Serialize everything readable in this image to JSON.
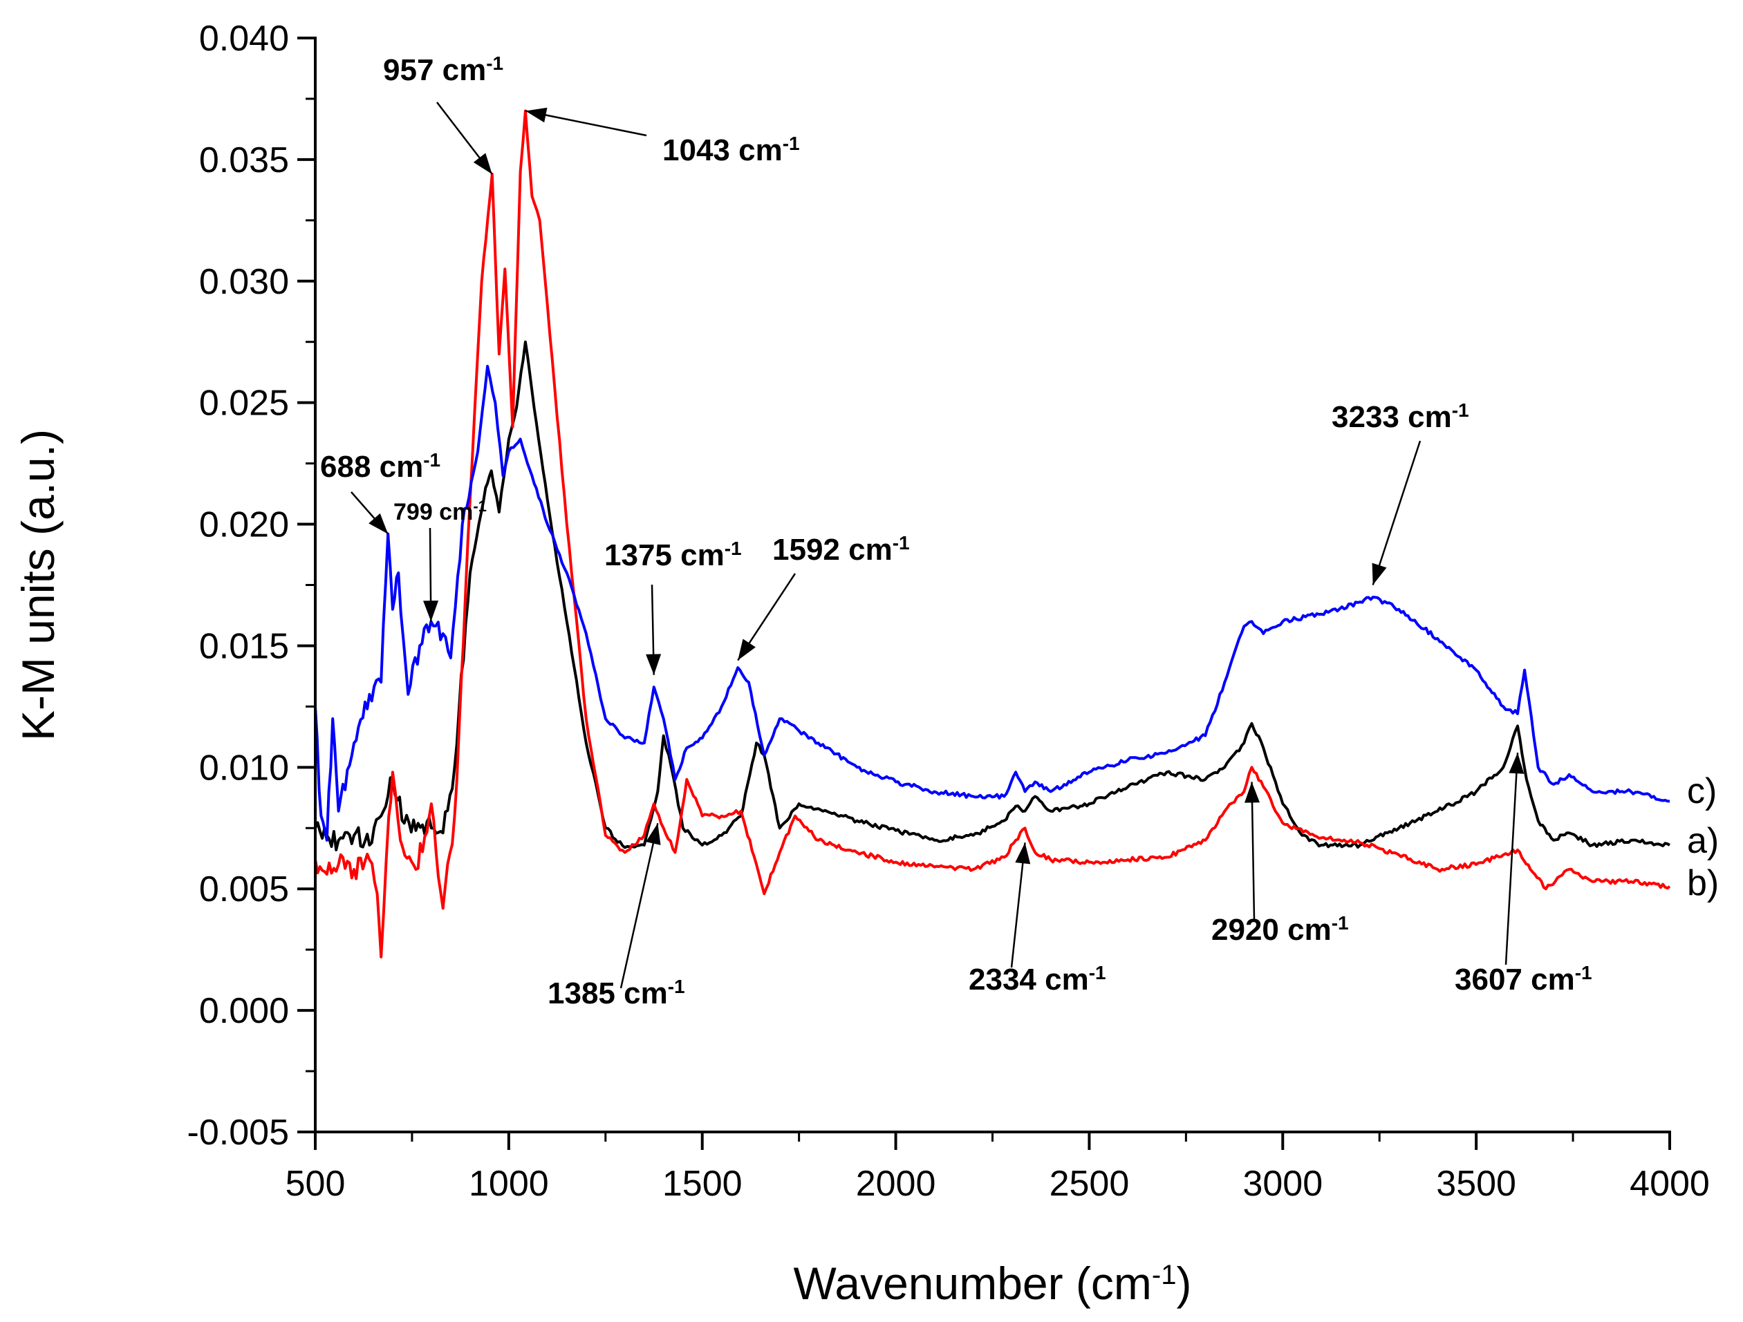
{
  "chart_data": {
    "type": "line",
    "title": "",
    "xlabel": "Wavenumber (cm",
    "xlabel_sup": "-1",
    "xlabel_tail": ")",
    "ylabel": "K-M units (a.u.)",
    "xlim": [
      500,
      4000
    ],
    "ylim": [
      -0.005,
      0.04
    ],
    "x_ticks": [
      500,
      1000,
      1500,
      2000,
      2500,
      3000,
      3500,
      4000
    ],
    "y_ticks": [
      -0.005,
      0.0,
      0.005,
      0.01,
      0.015,
      0.02,
      0.025,
      0.03,
      0.035,
      0.04
    ],
    "y_tick_labels": [
      "-0.005",
      "0.000",
      "0.005",
      "0.010",
      "0.015",
      "0.020",
      "0.025",
      "0.030",
      "0.035",
      "0.040"
    ],
    "x_tick_labels": [
      "500",
      "1000",
      "1500",
      "2000",
      "2500",
      "3000",
      "3500",
      "4000"
    ],
    "grid": false,
    "series": [
      {
        "name": "a)",
        "color": "#000000",
        "points": [
          [
            500,
            0.0075
          ],
          [
            530,
            0.0072
          ],
          [
            560,
            0.007
          ],
          [
            600,
            0.0072
          ],
          [
            640,
            0.0068
          ],
          [
            670,
            0.008
          ],
          [
            700,
            0.0096
          ],
          [
            730,
            0.0077
          ],
          [
            760,
            0.0074
          ],
          [
            800,
            0.0075
          ],
          [
            830,
            0.0073
          ],
          [
            860,
            0.01
          ],
          [
            900,
            0.018
          ],
          [
            940,
            0.0215
          ],
          [
            955,
            0.0222
          ],
          [
            975,
            0.0205
          ],
          [
            1000,
            0.0235
          ],
          [
            1020,
            0.0248
          ],
          [
            1043,
            0.0275
          ],
          [
            1060,
            0.0255
          ],
          [
            1100,
            0.021
          ],
          [
            1150,
            0.016
          ],
          [
            1200,
            0.011
          ],
          [
            1250,
            0.0075
          ],
          [
            1300,
            0.0067
          ],
          [
            1350,
            0.0068
          ],
          [
            1385,
            0.009
          ],
          [
            1400,
            0.0113
          ],
          [
            1420,
            0.01
          ],
          [
            1450,
            0.0075
          ],
          [
            1500,
            0.0068
          ],
          [
            1550,
            0.0072
          ],
          [
            1600,
            0.008
          ],
          [
            1640,
            0.011
          ],
          [
            1660,
            0.0105
          ],
          [
            1700,
            0.0075
          ],
          [
            1750,
            0.0085
          ],
          [
            1800,
            0.0083
          ],
          [
            1900,
            0.0078
          ],
          [
            2000,
            0.0074
          ],
          [
            2100,
            0.007
          ],
          [
            2200,
            0.0072
          ],
          [
            2280,
            0.0078
          ],
          [
            2310,
            0.0084
          ],
          [
            2334,
            0.0082
          ],
          [
            2360,
            0.0088
          ],
          [
            2400,
            0.0082
          ],
          [
            2500,
            0.0085
          ],
          [
            2600,
            0.0092
          ],
          [
            2700,
            0.0098
          ],
          [
            2800,
            0.0095
          ],
          [
            2850,
            0.01
          ],
          [
            2900,
            0.011
          ],
          [
            2920,
            0.0118
          ],
          [
            2950,
            0.0108
          ],
          [
            3000,
            0.0085
          ],
          [
            3050,
            0.0072
          ],
          [
            3100,
            0.0068
          ],
          [
            3200,
            0.0068
          ],
          [
            3300,
            0.0075
          ],
          [
            3400,
            0.0082
          ],
          [
            3500,
            0.009
          ],
          [
            3570,
            0.01
          ],
          [
            3607,
            0.0117
          ],
          [
            3630,
            0.0095
          ],
          [
            3660,
            0.0078
          ],
          [
            3700,
            0.007
          ],
          [
            3740,
            0.0073
          ],
          [
            3800,
            0.0068
          ],
          [
            3900,
            0.007
          ],
          [
            4000,
            0.0068
          ]
        ]
      },
      {
        "name": "b)",
        "color": "#ff0000",
        "points": [
          [
            500,
            0.0062
          ],
          [
            530,
            0.0056
          ],
          [
            560,
            0.006
          ],
          [
            600,
            0.0058
          ],
          [
            640,
            0.0062
          ],
          [
            660,
            0.0048
          ],
          [
            670,
            0.0022
          ],
          [
            690,
            0.008
          ],
          [
            700,
            0.0098
          ],
          [
            720,
            0.007
          ],
          [
            760,
            0.0058
          ],
          [
            800,
            0.0085
          ],
          [
            830,
            0.0042
          ],
          [
            860,
            0.008
          ],
          [
            900,
            0.021
          ],
          [
            930,
            0.03
          ],
          [
            957,
            0.0344
          ],
          [
            975,
            0.027
          ],
          [
            990,
            0.0305
          ],
          [
            1010,
            0.024
          ],
          [
            1030,
            0.0345
          ],
          [
            1043,
            0.037
          ],
          [
            1060,
            0.0335
          ],
          [
            1080,
            0.0325
          ],
          [
            1100,
            0.029
          ],
          [
            1150,
            0.02
          ],
          [
            1200,
            0.012
          ],
          [
            1250,
            0.0072
          ],
          [
            1300,
            0.0065
          ],
          [
            1350,
            0.0072
          ],
          [
            1375,
            0.0085
          ],
          [
            1400,
            0.0075
          ],
          [
            1430,
            0.0065
          ],
          [
            1460,
            0.0095
          ],
          [
            1500,
            0.008
          ],
          [
            1550,
            0.008
          ],
          [
            1600,
            0.0082
          ],
          [
            1640,
            0.006
          ],
          [
            1660,
            0.0048
          ],
          [
            1700,
            0.0065
          ],
          [
            1740,
            0.008
          ],
          [
            1800,
            0.007
          ],
          [
            1900,
            0.0065
          ],
          [
            2000,
            0.0061
          ],
          [
            2100,
            0.0059
          ],
          [
            2200,
            0.0058
          ],
          [
            2280,
            0.0063
          ],
          [
            2310,
            0.007
          ],
          [
            2334,
            0.0075
          ],
          [
            2360,
            0.0065
          ],
          [
            2400,
            0.0062
          ],
          [
            2500,
            0.0061
          ],
          [
            2600,
            0.0062
          ],
          [
            2700,
            0.0063
          ],
          [
            2800,
            0.007
          ],
          [
            2850,
            0.0082
          ],
          [
            2900,
            0.009
          ],
          [
            2920,
            0.01
          ],
          [
            2950,
            0.0092
          ],
          [
            3000,
            0.0077
          ],
          [
            3100,
            0.0071
          ],
          [
            3200,
            0.0069
          ],
          [
            3300,
            0.0064
          ],
          [
            3400,
            0.0058
          ],
          [
            3500,
            0.006
          ],
          [
            3570,
            0.0064
          ],
          [
            3607,
            0.0066
          ],
          [
            3640,
            0.0058
          ],
          [
            3680,
            0.005
          ],
          [
            3740,
            0.0058
          ],
          [
            3800,
            0.0053
          ],
          [
            3900,
            0.0053
          ],
          [
            4000,
            0.0051
          ]
        ]
      },
      {
        "name": "c)",
        "color": "#0000ff",
        "points": [
          [
            500,
            0.0125
          ],
          [
            515,
            0.008
          ],
          [
            530,
            0.007
          ],
          [
            545,
            0.012
          ],
          [
            560,
            0.0082
          ],
          [
            600,
            0.011
          ],
          [
            640,
            0.013
          ],
          [
            670,
            0.0135
          ],
          [
            688,
            0.0196
          ],
          [
            700,
            0.0165
          ],
          [
            715,
            0.018
          ],
          [
            740,
            0.013
          ],
          [
            770,
            0.015
          ],
          [
            799,
            0.016
          ],
          [
            830,
            0.0155
          ],
          [
            850,
            0.0145
          ],
          [
            880,
            0.02
          ],
          [
            920,
            0.023
          ],
          [
            945,
            0.0265
          ],
          [
            965,
            0.025
          ],
          [
            985,
            0.022
          ],
          [
            1000,
            0.023
          ],
          [
            1030,
            0.0235
          ],
          [
            1060,
            0.022
          ],
          [
            1100,
            0.02
          ],
          [
            1150,
            0.018
          ],
          [
            1200,
            0.0155
          ],
          [
            1250,
            0.012
          ],
          [
            1300,
            0.0112
          ],
          [
            1350,
            0.011
          ],
          [
            1375,
            0.0133
          ],
          [
            1400,
            0.012
          ],
          [
            1430,
            0.0095
          ],
          [
            1460,
            0.0108
          ],
          [
            1500,
            0.0112
          ],
          [
            1550,
            0.0125
          ],
          [
            1592,
            0.0141
          ],
          [
            1620,
            0.0135
          ],
          [
            1660,
            0.0105
          ],
          [
            1700,
            0.012
          ],
          [
            1750,
            0.0115
          ],
          [
            1800,
            0.011
          ],
          [
            1900,
            0.01
          ],
          [
            2000,
            0.0094
          ],
          [
            2100,
            0.009
          ],
          [
            2200,
            0.0088
          ],
          [
            2280,
            0.0088
          ],
          [
            2310,
            0.0098
          ],
          [
            2334,
            0.009
          ],
          [
            2360,
            0.0094
          ],
          [
            2400,
            0.009
          ],
          [
            2500,
            0.0098
          ],
          [
            2600,
            0.0103
          ],
          [
            2700,
            0.0106
          ],
          [
            2800,
            0.0113
          ],
          [
            2850,
            0.0135
          ],
          [
            2900,
            0.0158
          ],
          [
            2920,
            0.016
          ],
          [
            2950,
            0.0155
          ],
          [
            3000,
            0.016
          ],
          [
            3100,
            0.0163
          ],
          [
            3200,
            0.0168
          ],
          [
            3233,
            0.017
          ],
          [
            3300,
            0.0165
          ],
          [
            3400,
            0.0153
          ],
          [
            3500,
            0.014
          ],
          [
            3570,
            0.0125
          ],
          [
            3607,
            0.0122
          ],
          [
            3625,
            0.014
          ],
          [
            3660,
            0.01
          ],
          [
            3700,
            0.0093
          ],
          [
            3740,
            0.0097
          ],
          [
            3800,
            0.009
          ],
          [
            3900,
            0.009
          ],
          [
            4000,
            0.0086
          ]
        ]
      }
    ],
    "annotations": [
      {
        "text": "957 cm",
        "sup": "-1",
        "target": [
          957,
          0.0344
        ],
        "size": "large"
      },
      {
        "text": "1043 cm",
        "sup": "-1",
        "target": [
          1043,
          0.037
        ],
        "size": "large"
      },
      {
        "text": "688 cm",
        "sup": "-1",
        "target": [
          688,
          0.0196
        ],
        "size": "large"
      },
      {
        "text": "799 cm",
        "sup": "-1",
        "target": [
          799,
          0.016
        ],
        "size": "small"
      },
      {
        "text": "1375 cm",
        "sup": "-1",
        "target": [
          1375,
          0.0138
        ],
        "size": "large"
      },
      {
        "text": "1592 cm",
        "sup": "-1",
        "target": [
          1592,
          0.0144
        ],
        "size": "large"
      },
      {
        "text": "3233 cm",
        "sup": "-1",
        "target": [
          3233,
          0.0175
        ],
        "size": "large"
      },
      {
        "text": "1385 cm",
        "sup": "-1",
        "target": [
          1385,
          0.0077
        ],
        "size": "large"
      },
      {
        "text": "2334 cm",
        "sup": "-1",
        "target": [
          2334,
          0.0069
        ],
        "size": "large"
      },
      {
        "text": "2920 cm",
        "sup": "-1",
        "target": [
          2920,
          0.0094
        ],
        "size": "large"
      },
      {
        "text": "3607 cm",
        "sup": "-1",
        "target": [
          3607,
          0.0106
        ],
        "size": "large"
      }
    ],
    "series_end_labels": [
      "c)",
      "a)",
      "b)"
    ]
  }
}
